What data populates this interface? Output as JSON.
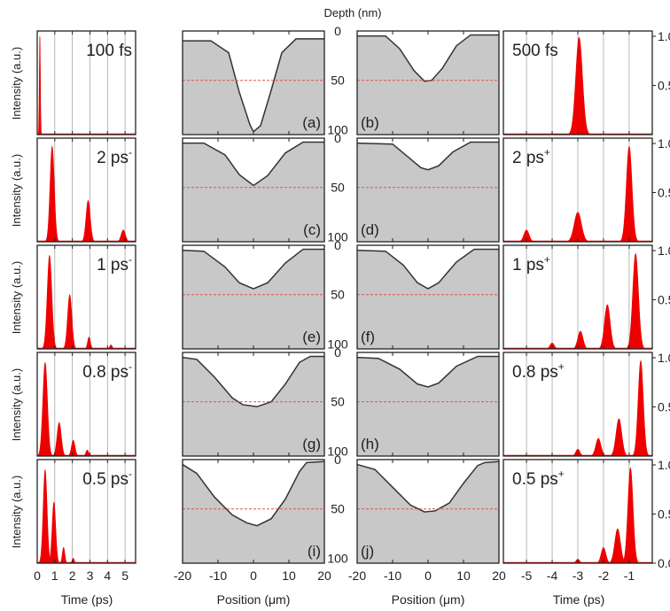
{
  "colors": {
    "pulse": "#ee0000",
    "crater_fill": "#c8c8c8",
    "crater_line": "#333333",
    "ref_line": "#e05050",
    "grid": "#9a9a9a",
    "frame": "#222222"
  },
  "labels": {
    "top_axis": "Depth (nm)",
    "left_xlabel": "Time (ps)",
    "right_xlabel": "Time (ps)",
    "mid_xlabel_left": "Position (μm)",
    "mid_xlabel_right": "Position (μm)",
    "left_ylabel": "Intensity (a.u.)"
  },
  "chart_data": [
    {
      "type": "area",
      "group": "pulse-train-positive",
      "x_ticks": [
        "0",
        "1",
        "2",
        "3",
        "4",
        "5"
      ],
      "xlim": [
        0,
        5.6
      ],
      "xlabel": "Time (ps)",
      "ylabel": "Intensity (a.u.)",
      "rows": [
        {
          "label": "100 fs",
          "pulses": [
            {
              "t": 0.15,
              "h": 1.0,
              "w": 0.03
            }
          ]
        },
        {
          "label": "2 ps",
          "sup": "-",
          "pulses": [
            {
              "t": 0.85,
              "h": 0.97,
              "w": 0.12
            },
            {
              "t": 2.9,
              "h": 0.42,
              "w": 0.12
            },
            {
              "t": 4.9,
              "h": 0.12,
              "w": 0.12
            }
          ]
        },
        {
          "label": "1 ps",
          "sup": "-",
          "pulses": [
            {
              "t": 0.7,
              "h": 0.95,
              "w": 0.13
            },
            {
              "t": 1.85,
              "h": 0.55,
              "w": 0.12
            },
            {
              "t": 2.95,
              "h": 0.12,
              "w": 0.08
            },
            {
              "t": 4.2,
              "h": 0.04,
              "w": 0.07
            }
          ]
        },
        {
          "label": "0.8 ps",
          "sup": "-",
          "pulses": [
            {
              "t": 0.45,
              "h": 0.95,
              "w": 0.13
            },
            {
              "t": 1.25,
              "h": 0.34,
              "w": 0.12
            },
            {
              "t": 2.05,
              "h": 0.16,
              "w": 0.1
            },
            {
              "t": 2.85,
              "h": 0.06,
              "w": 0.08
            }
          ]
        },
        {
          "label": "0.5 ps",
          "sup": "-",
          "pulses": [
            {
              "t": 0.45,
              "h": 0.95,
              "w": 0.11
            },
            {
              "t": 0.95,
              "h": 0.62,
              "w": 0.1
            },
            {
              "t": 1.5,
              "h": 0.16,
              "w": 0.07
            },
            {
              "t": 2.05,
              "h": 0.05,
              "w": 0.06
            }
          ]
        }
      ]
    },
    {
      "type": "area",
      "group": "crater-profile-left",
      "x_ticks": [
        "-20",
        "-10",
        "0",
        "10",
        "20"
      ],
      "xlim": [
        -20,
        20
      ],
      "ylim": [
        105,
        0
      ],
      "xlabel": "Position (μm)",
      "ref_depth": 50,
      "rows": [
        {
          "panel": "(a)",
          "profile": [
            {
              "x": -20,
              "y": 10
            },
            {
              "x": -12,
              "y": 10
            },
            {
              "x": -7,
              "y": 22
            },
            {
              "x": -4,
              "y": 62
            },
            {
              "x": -1,
              "y": 95
            },
            {
              "x": 0,
              "y": 102
            },
            {
              "x": 2,
              "y": 96
            },
            {
              "x": 5,
              "y": 60
            },
            {
              "x": 8,
              "y": 22
            },
            {
              "x": 12,
              "y": 8
            },
            {
              "x": 20,
              "y": 8
            }
          ]
        },
        {
          "panel": "(c)",
          "profile": [
            {
              "x": -20,
              "y": 5
            },
            {
              "x": -14,
              "y": 5
            },
            {
              "x": -8,
              "y": 17
            },
            {
              "x": -4,
              "y": 37
            },
            {
              "x": 0,
              "y": 48
            },
            {
              "x": 4,
              "y": 38
            },
            {
              "x": 9,
              "y": 15
            },
            {
              "x": 14,
              "y": 4
            },
            {
              "x": 20,
              "y": 4
            }
          ]
        },
        {
          "panel": "(e)",
          "profile": [
            {
              "x": -20,
              "y": 5
            },
            {
              "x": -14,
              "y": 6
            },
            {
              "x": -8,
              "y": 22
            },
            {
              "x": -4,
              "y": 38
            },
            {
              "x": 0,
              "y": 44
            },
            {
              "x": 4,
              "y": 38
            },
            {
              "x": 9,
              "y": 18
            },
            {
              "x": 14,
              "y": 4
            },
            {
              "x": 20,
              "y": 4
            }
          ]
        },
        {
          "panel": "(g)",
          "profile": [
            {
              "x": -20,
              "y": 5
            },
            {
              "x": -16,
              "y": 7
            },
            {
              "x": -11,
              "y": 25
            },
            {
              "x": -6,
              "y": 46
            },
            {
              "x": -3,
              "y": 53
            },
            {
              "x": 1,
              "y": 55
            },
            {
              "x": 5,
              "y": 50
            },
            {
              "x": 9,
              "y": 32
            },
            {
              "x": 13,
              "y": 10
            },
            {
              "x": 16,
              "y": 4
            },
            {
              "x": 20,
              "y": 4
            }
          ]
        },
        {
          "panel": "(i)",
          "profile": [
            {
              "x": -20,
              "y": 5
            },
            {
              "x": -16,
              "y": 14
            },
            {
              "x": -11,
              "y": 38
            },
            {
              "x": -6,
              "y": 56
            },
            {
              "x": -2,
              "y": 64
            },
            {
              "x": 1,
              "y": 67
            },
            {
              "x": 5,
              "y": 60
            },
            {
              "x": 9,
              "y": 40
            },
            {
              "x": 13,
              "y": 12
            },
            {
              "x": 15,
              "y": 3
            },
            {
              "x": 20,
              "y": 2
            }
          ]
        }
      ]
    },
    {
      "type": "area",
      "group": "crater-profile-right",
      "x_ticks": [
        "-20",
        "-10",
        "0",
        "10",
        "20"
      ],
      "xlim": [
        -20,
        20
      ],
      "ylim": [
        105,
        0
      ],
      "y_ticks": [
        "0",
        "50",
        "100"
      ],
      "xlabel": "Position (μm)",
      "ref_depth": 50,
      "rows": [
        {
          "panel": "(b)",
          "profile": [
            {
              "x": -20,
              "y": 5
            },
            {
              "x": -12,
              "y": 5
            },
            {
              "x": -8,
              "y": 18
            },
            {
              "x": -4,
              "y": 40
            },
            {
              "x": -1,
              "y": 51
            },
            {
              "x": 1,
              "y": 50
            },
            {
              "x": 4,
              "y": 38
            },
            {
              "x": 8,
              "y": 15
            },
            {
              "x": 12,
              "y": 4
            },
            {
              "x": 20,
              "y": 4
            }
          ]
        },
        {
          "panel": "(d)",
          "profile": [
            {
              "x": -20,
              "y": 5
            },
            {
              "x": -10,
              "y": 6
            },
            {
              "x": -6,
              "y": 18
            },
            {
              "x": -2,
              "y": 30
            },
            {
              "x": 0,
              "y": 32
            },
            {
              "x": 3,
              "y": 28
            },
            {
              "x": 7,
              "y": 14
            },
            {
              "x": 12,
              "y": 4
            },
            {
              "x": 20,
              "y": 4
            }
          ]
        },
        {
          "panel": "(f)",
          "profile": [
            {
              "x": -20,
              "y": 5
            },
            {
              "x": -12,
              "y": 6
            },
            {
              "x": -7,
              "y": 20
            },
            {
              "x": -3,
              "y": 38
            },
            {
              "x": 0,
              "y": 44
            },
            {
              "x": 3,
              "y": 38
            },
            {
              "x": 8,
              "y": 17
            },
            {
              "x": 13,
              "y": 4
            },
            {
              "x": 20,
              "y": 4
            }
          ]
        },
        {
          "panel": "(h)",
          "profile": [
            {
              "x": -20,
              "y": 5
            },
            {
              "x": -14,
              "y": 6
            },
            {
              "x": -8,
              "y": 17
            },
            {
              "x": -3,
              "y": 32
            },
            {
              "x": 0,
              "y": 35
            },
            {
              "x": 3,
              "y": 31
            },
            {
              "x": 8,
              "y": 14
            },
            {
              "x": 14,
              "y": 4
            },
            {
              "x": 20,
              "y": 4
            }
          ]
        },
        {
          "panel": "(j)",
          "profile": [
            {
              "x": -20,
              "y": 5
            },
            {
              "x": -15,
              "y": 10
            },
            {
              "x": -10,
              "y": 28
            },
            {
              "x": -5,
              "y": 46
            },
            {
              "x": -1,
              "y": 53
            },
            {
              "x": 2,
              "y": 52
            },
            {
              "x": 6,
              "y": 44
            },
            {
              "x": 10,
              "y": 24
            },
            {
              "x": 14,
              "y": 6
            },
            {
              "x": 16,
              "y": 3
            },
            {
              "x": 20,
              "y": 2
            }
          ]
        }
      ]
    },
    {
      "type": "area",
      "group": "pulse-train-negative",
      "x_ticks": [
        "-5",
        "-4",
        "-3",
        "-2",
        "-1"
      ],
      "xlim": [
        -5.9,
        -0.1
      ],
      "y_ticks": [
        "0.0",
        "0.5",
        "1.0"
      ],
      "xlabel": "Time (ps)",
      "rows": [
        {
          "label": "500 fs",
          "pulses": [
            {
              "t": -2.95,
              "h": 0.99,
              "w": 0.13
            }
          ]
        },
        {
          "label": "2 ps",
          "sup": "+",
          "pulses": [
            {
              "t": -5.0,
              "h": 0.12,
              "w": 0.1
            },
            {
              "t": -3.0,
              "h": 0.3,
              "w": 0.14
            },
            {
              "t": -1.0,
              "h": 0.97,
              "w": 0.11
            }
          ]
        },
        {
          "label": "1 ps",
          "sup": "+",
          "pulses": [
            {
              "t": -4.0,
              "h": 0.06,
              "w": 0.08
            },
            {
              "t": -2.9,
              "h": 0.18,
              "w": 0.1
            },
            {
              "t": -1.85,
              "h": 0.45,
              "w": 0.11
            },
            {
              "t": -0.75,
              "h": 0.97,
              "w": 0.11
            }
          ]
        },
        {
          "label": "0.8 ps",
          "sup": "+",
          "pulses": [
            {
              "t": -3.0,
              "h": 0.07,
              "w": 0.08
            },
            {
              "t": -2.2,
              "h": 0.18,
              "w": 0.1
            },
            {
              "t": -1.4,
              "h": 0.38,
              "w": 0.11
            },
            {
              "t": -0.55,
              "h": 0.97,
              "w": 0.1
            }
          ]
        },
        {
          "label": "0.5 ps",
          "sup": "+",
          "pulses": [
            {
              "t": -3.0,
              "h": 0.04,
              "w": 0.07
            },
            {
              "t": -2.0,
              "h": 0.16,
              "w": 0.09
            },
            {
              "t": -1.45,
              "h": 0.35,
              "w": 0.11
            },
            {
              "t": -0.95,
              "h": 0.97,
              "w": 0.1
            }
          ]
        }
      ]
    }
  ]
}
